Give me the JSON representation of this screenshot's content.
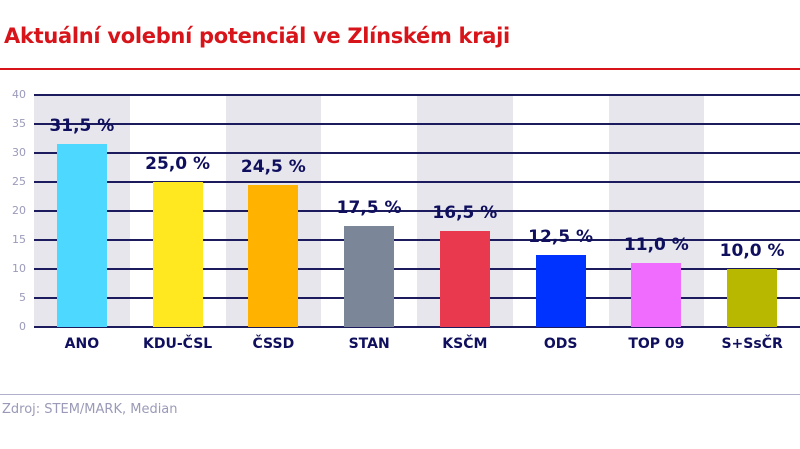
{
  "title": "Aktuální volební potenciál ve Zlínském kraji",
  "source": "Zdroj: STEM/MARK, Median",
  "colors": {
    "title": "#d7141a",
    "text": "#0f0f5e",
    "grid": "#1b1b5e",
    "band": "#e6e6ec"
  },
  "chart_data": {
    "type": "bar",
    "title": "Aktuální volební potenciál ve Zlínském kraji",
    "xlabel": "",
    "ylabel": "",
    "ylim": [
      0,
      40
    ],
    "yticks": [
      0,
      5,
      10,
      15,
      20,
      25,
      30,
      35,
      40
    ],
    "grid": true,
    "legend": "none",
    "categories": [
      "ANO",
      "KDU-ČSL",
      "ČSSD",
      "STAN",
      "KSČM",
      "ODS",
      "TOP 09",
      "S+SsČR"
    ],
    "values": [
      31.5,
      25.0,
      24.5,
      17.5,
      16.5,
      12.5,
      11.0,
      10.0
    ],
    "value_labels": [
      "31,5 %",
      "25,0 %",
      "24,5 %",
      "17,5 %",
      "16,5 %",
      "12,5 %",
      "11,0 %",
      "10,0 %"
    ],
    "bar_colors": [
      "#4dd9ff",
      "#ffe81f",
      "#ffb300",
      "#7b8799",
      "#e8394f",
      "#0033ff",
      "#f06cff",
      "#b8b800"
    ],
    "shaded_bands": [
      true,
      false,
      true,
      false,
      true,
      false,
      true,
      false
    ],
    "source": "Zdroj: STEM/MARK, Median"
  }
}
